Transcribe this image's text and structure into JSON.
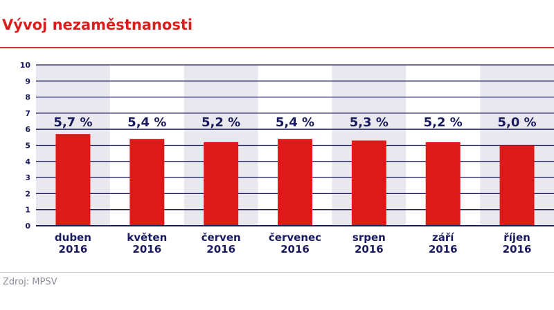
{
  "title": "Vývoj nezaměstnanosti",
  "source": "Zdroj: MPSV",
  "colors": {
    "bar": "#dd1a1a",
    "text": "#1a1a5e",
    "band": "#e8e8ee",
    "title": "#d91e1e"
  },
  "chart_data": {
    "type": "bar",
    "title": "Vývoj nezaměstnanosti",
    "categories": [
      [
        "duben",
        "2016"
      ],
      [
        "květen",
        "2016"
      ],
      [
        "červen",
        "2016"
      ],
      [
        "červenec",
        "2016"
      ],
      [
        "srpen",
        "2016"
      ],
      [
        "září",
        "2016"
      ],
      [
        "říjen",
        "2016"
      ]
    ],
    "values": [
      5.7,
      5.4,
      5.2,
      5.4,
      5.3,
      5.2,
      5.0
    ],
    "data_labels": [
      "5,7 %",
      "5,4 %",
      "5,2 %",
      "5,4 %",
      "5,3 %",
      "5,2 %",
      "5,0 %"
    ],
    "ylim": [
      0,
      10
    ],
    "yticks": [
      "0",
      "1",
      "2",
      "3",
      "4",
      "5",
      "6",
      "7",
      "8",
      "9",
      "10"
    ],
    "grid": true,
    "xlabel": "",
    "ylabel": ""
  }
}
